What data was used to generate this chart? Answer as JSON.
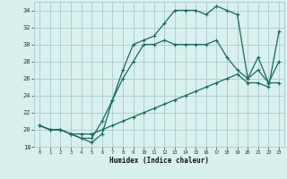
{
  "title": "",
  "xlabel": "Humidex (Indice chaleur)",
  "bg_color": "#d8f0ee",
  "line_color": "#1a6b5a",
  "grid_color": "#aacccc",
  "x": [
    0,
    1,
    2,
    3,
    4,
    5,
    6,
    7,
    8,
    9,
    10,
    11,
    12,
    13,
    14,
    15,
    16,
    17,
    18,
    19,
    20,
    21,
    22,
    23
  ],
  "line1": [
    20.5,
    20.0,
    20.0,
    19.5,
    19.0,
    18.5,
    19.5,
    23.5,
    27.0,
    30.0,
    30.5,
    31.0,
    32.5,
    34.0,
    34.0,
    34.0,
    33.5,
    34.5,
    34.0,
    33.5,
    26.0,
    28.5,
    25.5,
    25.5
  ],
  "line2": [
    20.5,
    20.0,
    20.0,
    19.5,
    19.0,
    19.0,
    21.0,
    23.5,
    26.0,
    28.0,
    30.0,
    30.0,
    30.5,
    30.0,
    30.0,
    30.0,
    30.0,
    30.5,
    28.5,
    27.0,
    26.0,
    27.0,
    25.5,
    28.0
  ],
  "line3": [
    20.5,
    20.0,
    20.0,
    19.5,
    19.5,
    19.5,
    20.0,
    20.5,
    21.0,
    21.5,
    22.0,
    22.5,
    23.0,
    23.5,
    24.0,
    24.5,
    25.0,
    25.5,
    26.0,
    26.5,
    25.5,
    25.5,
    25.0,
    31.5
  ],
  "ylim": [
    18,
    35
  ],
  "xlim": [
    -0.5,
    23.5
  ],
  "yticks": [
    18,
    20,
    22,
    24,
    26,
    28,
    30,
    32,
    34
  ],
  "xticks": [
    0,
    1,
    2,
    3,
    4,
    5,
    6,
    7,
    8,
    9,
    10,
    11,
    12,
    13,
    14,
    15,
    16,
    17,
    18,
    19,
    20,
    21,
    22,
    23
  ],
  "xtick_labels": [
    "0",
    "1",
    "2",
    "3",
    "4",
    "5",
    "6",
    "7",
    "8",
    "9",
    "10",
    "11",
    "12",
    "13",
    "14",
    "15",
    "16",
    "17",
    "18",
    "19",
    "20",
    "21",
    "22",
    "23"
  ]
}
